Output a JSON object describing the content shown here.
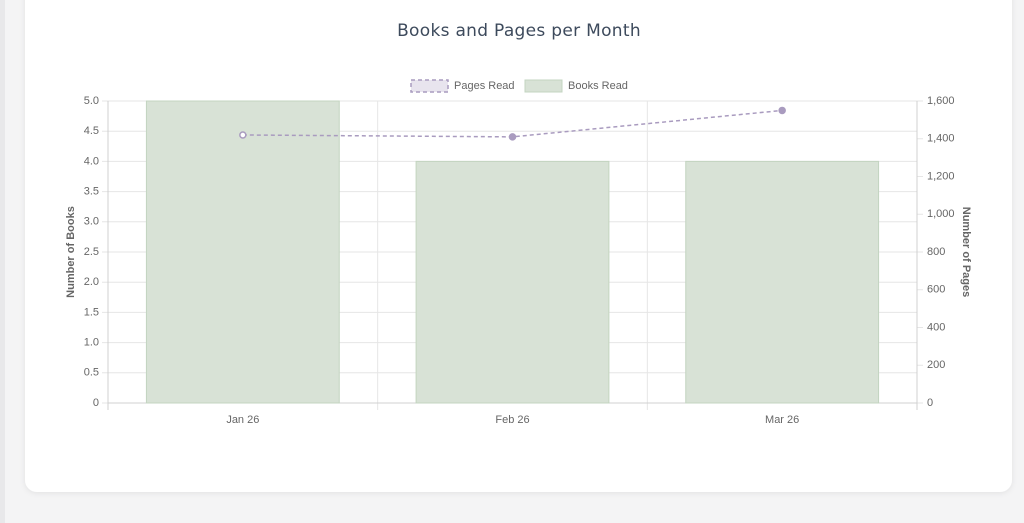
{
  "chart_data": {
    "type": "bar",
    "title": "Books and Pages per Month",
    "categories": [
      "Jan 26",
      "Feb 26",
      "Mar 26"
    ],
    "series": [
      {
        "name": "Pages Read",
        "type": "line",
        "axis": "y2",
        "color": "#a99bbf",
        "values": [
          1420,
          1410,
          1550
        ]
      },
      {
        "name": "Books Read",
        "type": "bar",
        "color": "#d8e2d6",
        "values": [
          5,
          4,
          4
        ]
      }
    ],
    "ylabel": "Number of Books",
    "y2label": "Number of Pages",
    "ylim": [
      0,
      5
    ],
    "yticks": [
      0,
      0.5,
      {
        "value": 1,
        "label": "1.0"
      },
      1.5,
      {
        "value": 2,
        "label": "2.0"
      },
      2.5,
      {
        "value": 3,
        "label": "3.0"
      },
      3.5,
      {
        "value": 4,
        "label": "4.0"
      },
      4.5,
      {
        "value": 5,
        "label": "5.0"
      }
    ],
    "y2lim": [
      0,
      1600
    ],
    "y2ticks": [
      0,
      200,
      400,
      600,
      800,
      {
        "value": 1000,
        "label": "1,000"
      },
      {
        "value": 1200,
        "label": "1,200"
      },
      {
        "value": 1400,
        "label": "1,400"
      },
      {
        "value": 1600,
        "label": "1,600"
      }
    ],
    "grid": true,
    "legend": "top"
  }
}
